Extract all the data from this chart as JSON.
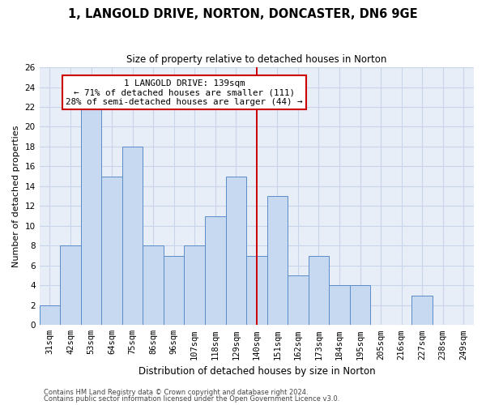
{
  "title": "1, LANGOLD DRIVE, NORTON, DONCASTER, DN6 9GE",
  "subtitle": "Size of property relative to detached houses in Norton",
  "xlabel": "Distribution of detached houses by size in Norton",
  "ylabel": "Number of detached properties",
  "categories": [
    "31sqm",
    "42sqm",
    "53sqm",
    "64sqm",
    "75sqm",
    "86sqm",
    "96sqm",
    "107sqm",
    "118sqm",
    "129sqm",
    "140sqm",
    "151sqm",
    "162sqm",
    "173sqm",
    "184sqm",
    "195sqm",
    "205sqm",
    "216sqm",
    "227sqm",
    "238sqm",
    "249sqm"
  ],
  "values": [
    2,
    8,
    22,
    15,
    18,
    8,
    7,
    8,
    11,
    15,
    7,
    13,
    5,
    7,
    4,
    4,
    0,
    0,
    3,
    0,
    0
  ],
  "bar_color": "#c6d9f1",
  "bar_edge_color": "#5b8cc8",
  "grid_color": "#c8d4e8",
  "background_color": "#e8eef8",
  "vline_x_index": 10,
  "vline_color": "#cc0000",
  "annotation_text": "1 LANGOLD DRIVE: 139sqm\n← 71% of detached houses are smaller (111)\n28% of semi-detached houses are larger (44) →",
  "annotation_box_color": "#ffffff",
  "annotation_box_edge": "#cc0000",
  "ylim": [
    0,
    26
  ],
  "yticks": [
    0,
    2,
    4,
    6,
    8,
    10,
    12,
    14,
    16,
    18,
    20,
    22,
    24,
    26
  ],
  "footer1": "Contains HM Land Registry data © Crown copyright and database right 2024.",
  "footer2": "Contains public sector information licensed under the Open Government Licence v3.0.",
  "title_fontsize": 10.5,
  "subtitle_fontsize": 8.5,
  "xlabel_fontsize": 8.5,
  "ylabel_fontsize": 8,
  "tick_fontsize": 7.5,
  "annotation_fontsize": 7.8,
  "footer_fontsize": 6.0
}
